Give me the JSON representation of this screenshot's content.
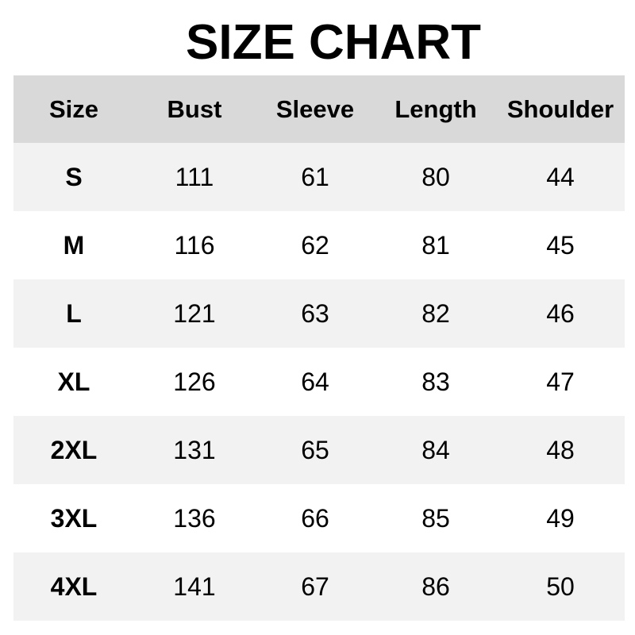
{
  "chart_data": {
    "type": "table",
    "title": "SIZE CHART",
    "columns": [
      "Size",
      "Bust",
      "Sleeve",
      "Length",
      "Shoulder"
    ],
    "rows": [
      [
        "S",
        "111",
        "61",
        "80",
        "44"
      ],
      [
        "M",
        "116",
        "62",
        "81",
        "45"
      ],
      [
        "L",
        "121",
        "63",
        "82",
        "46"
      ],
      [
        "XL",
        "126",
        "64",
        "83",
        "47"
      ],
      [
        "2XL",
        "131",
        "65",
        "84",
        "48"
      ],
      [
        "3XL",
        "136",
        "66",
        "85",
        "49"
      ],
      [
        "4XL",
        "141",
        "67",
        "86",
        "50"
      ]
    ],
    "colors": {
      "header_bg": "#d9d9d9",
      "stripe_bg": "#f2f2f2",
      "row_bg": "#ffffff",
      "text": "#000000"
    }
  }
}
